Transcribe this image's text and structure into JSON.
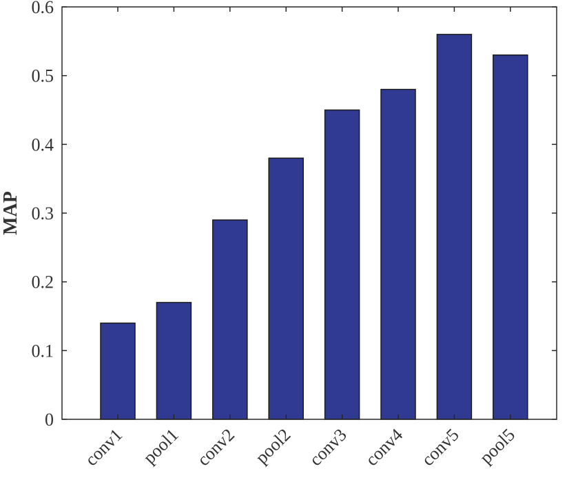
{
  "chart_data": {
    "type": "bar",
    "categories": [
      "conv1",
      "pool1",
      "conv2",
      "pool2",
      "conv3",
      "conv4",
      "conv5",
      "pool5"
    ],
    "values": [
      0.14,
      0.17,
      0.29,
      0.38,
      0.45,
      0.48,
      0.56,
      0.53
    ],
    "title": "",
    "xlabel": "",
    "ylabel": "MAP",
    "ylim": [
      0,
      0.6
    ],
    "yticks": [
      "0",
      "0.1",
      "0.2",
      "0.3",
      "0.4",
      "0.5",
      "0.6"
    ],
    "grid": false,
    "bar_color": "#303a92",
    "bar_edge_color": "#1a1a1a"
  }
}
